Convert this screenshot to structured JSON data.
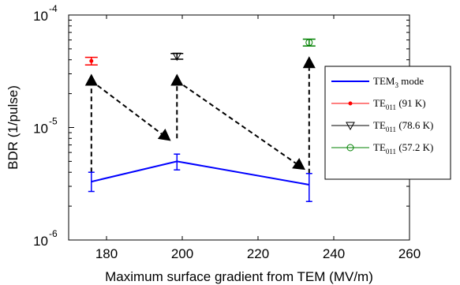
{
  "chart_data": {
    "type": "line",
    "xlabel": "Maximum surface gradient from TEM (MV/m)",
    "ylabel": "BDR (1/pulse)",
    "xlim": [
      170,
      260
    ],
    "ylim": [
      1e-06,
      0.0001
    ],
    "yscale": "log",
    "xticks": [
      "180",
      "200",
      "220",
      "240",
      "260"
    ],
    "yticks": [
      {
        "base": "10",
        "exp": "-6",
        "value": 1e-06
      },
      {
        "base": "10",
        "exp": "-5",
        "value": 1e-05
      },
      {
        "base": "10",
        "exp": "-4",
        "value": 0.0001
      }
    ],
    "grid": false,
    "legend_position": "right",
    "series": [
      {
        "name": "TEM3 mode",
        "legend": {
          "main": "TEM",
          "sub": "3",
          "suffix": " mode"
        },
        "color": "#0000ff",
        "marker": "none",
        "points": [
          {
            "x": 176,
            "y": 3.3e-06,
            "err_low": 2.7e-06,
            "err_high": 4e-06
          },
          {
            "x": 198.6,
            "y": 5e-06,
            "err_low": 4.2e-06,
            "err_high": 5.8e-06
          },
          {
            "x": 233.5,
            "y": 3.1e-06,
            "err_low": 2.2e-06,
            "err_high": 3.9e-06
          }
        ]
      },
      {
        "name": "TE011 (91 K)",
        "legend": {
          "main": "TE",
          "sub": "011",
          "suffix": " (91 K)"
        },
        "color": "#ff0000",
        "marker": "dot",
        "points": [
          {
            "x": 176,
            "y": 3.9e-05,
            "err_low": 3.6e-05,
            "err_high": 4.2e-05
          }
        ]
      },
      {
        "name": "TE011 (78.6 K)",
        "legend": {
          "main": "TE",
          "sub": "011",
          "suffix": " (78.6 K)"
        },
        "color": "#000000",
        "marker": "triangle-down",
        "points": [
          {
            "x": 198.6,
            "y": 4.3e-05,
            "err_low": 4.05e-05,
            "err_high": 4.55e-05
          }
        ]
      },
      {
        "name": "TE011 (57.2 K)",
        "legend": {
          "main": "TE",
          "sub": "011",
          "suffix": " (57.2 K)"
        },
        "color": "#008000",
        "marker": "circle",
        "points": [
          {
            "x": 233.5,
            "y": 5.7e-05,
            "err_low": 5.3e-05,
            "err_high": 6.1e-05
          }
        ]
      }
    ],
    "arrows": [
      {
        "from": {
          "x": 176,
          "y": 4e-06
        },
        "to": {
          "x": 176,
          "y": 3e-05
        }
      },
      {
        "from": {
          "x": 176,
          "y": 2.6e-05
        },
        "to": {
          "x": 197,
          "y": 7.6e-06
        }
      },
      {
        "from": {
          "x": 198.6,
          "y": 8e-06
        },
        "to": {
          "x": 198.6,
          "y": 3e-05
        }
      },
      {
        "from": {
          "x": 198.6,
          "y": 2.6e-05
        },
        "to": {
          "x": 232.5,
          "y": 4.2e-06
        }
      },
      {
        "from": {
          "x": 233.5,
          "y": 3.9e-06
        },
        "to": {
          "x": 233.5,
          "y": 4.3e-05
        }
      }
    ]
  }
}
